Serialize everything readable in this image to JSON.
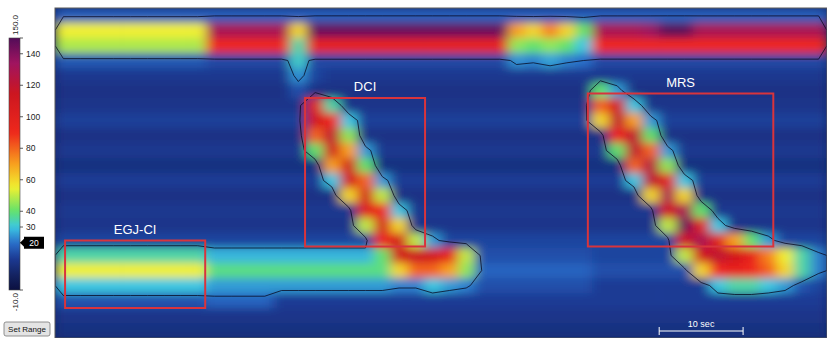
{
  "chart_data": {
    "type": "heatmap",
    "x": [
      0,
      2,
      4,
      6,
      8,
      10,
      12,
      14,
      16,
      18,
      20,
      22,
      24,
      26,
      28,
      30,
      32,
      34,
      36,
      38,
      40,
      42,
      44,
      46,
      48,
      50,
      52,
      54,
      56,
      58,
      60,
      62,
      64,
      66,
      68,
      70,
      72,
      74,
      76,
      78,
      80,
      82,
      84,
      86,
      88,
      90,
      92
    ],
    "y": [
      0,
      1,
      2,
      3,
      4,
      5,
      6,
      7,
      8,
      9,
      10,
      11,
      12,
      13,
      14,
      15,
      16,
      17,
      18,
      19,
      20,
      21,
      22
    ],
    "xlim": [
      0,
      92
    ],
    "ylim": [
      22,
      0
    ],
    "tick_labels": false,
    "cells": [
      [
        17,
        17,
        17,
        17,
        17,
        17,
        17,
        17,
        17,
        17,
        17,
        17,
        17,
        17,
        17,
        17,
        17,
        17,
        17,
        17,
        17,
        17,
        17,
        17,
        17,
        17,
        17,
        17,
        17,
        17,
        17,
        17,
        17,
        17,
        17,
        17,
        17,
        17,
        17,
        17,
        17,
        17,
        17,
        17,
        17,
        17
      ],
      [
        55,
        55,
        55,
        55,
        55,
        55,
        55,
        55,
        55,
        130,
        130,
        130,
        130,
        130,
        60,
        145,
        145,
        145,
        145,
        145,
        145,
        145,
        145,
        145,
        145,
        145,
        145,
        70,
        60,
        75,
        60,
        40,
        130,
        130,
        130,
        135,
        148,
        148,
        130,
        130,
        130,
        130,
        130,
        130,
        130,
        130
      ],
      [
        48,
        48,
        48,
        48,
        48,
        48,
        48,
        48,
        48,
        90,
        90,
        90,
        90,
        90,
        35,
        95,
        95,
        95,
        95,
        95,
        95,
        95,
        95,
        95,
        95,
        95,
        95,
        45,
        40,
        45,
        40,
        30,
        90,
        90,
        90,
        90,
        90,
        90,
        90,
        90,
        90,
        90,
        90,
        90,
        90,
        90
      ],
      [
        16,
        16,
        16,
        16,
        16,
        16,
        16,
        16,
        16,
        13,
        13,
        13,
        13,
        13,
        32,
        13,
        13,
        13,
        13,
        13,
        13,
        13,
        13,
        13,
        13,
        13,
        13,
        24,
        22,
        26,
        22,
        20,
        13,
        13,
        13,
        13,
        13,
        13,
        13,
        13,
        13,
        13,
        13,
        13,
        13,
        13
      ],
      [
        9,
        9,
        9,
        9,
        9,
        9,
        9,
        9,
        9,
        9,
        9,
        9,
        9,
        9,
        24,
        12,
        9,
        9,
        9,
        9,
        9,
        9,
        9,
        9,
        9,
        9,
        9,
        9,
        9,
        9,
        9,
        9,
        9,
        9,
        9,
        9,
        9,
        9,
        9,
        9,
        9,
        9,
        9,
        9,
        9,
        9
      ],
      [
        7,
        7,
        7,
        7,
        7,
        7,
        7,
        7,
        7,
        7,
        7,
        7,
        7,
        7,
        14,
        7,
        7,
        7,
        7,
        7,
        7,
        7,
        7,
        7,
        7,
        7,
        7,
        7,
        7,
        7,
        7,
        7,
        40,
        25,
        7,
        7,
        7,
        7,
        7,
        7,
        7,
        7,
        7,
        7,
        7,
        7
      ],
      [
        8,
        8,
        8,
        8,
        8,
        8,
        8,
        8,
        8,
        8,
        8,
        8,
        8,
        8,
        8,
        100,
        35,
        8,
        8,
        8,
        8,
        8,
        8,
        8,
        8,
        8,
        8,
        8,
        8,
        8,
        8,
        8,
        80,
        110,
        30,
        8,
        8,
        8,
        8,
        8,
        8,
        8,
        8,
        8,
        8,
        8
      ],
      [
        11,
        11,
        11,
        11,
        11,
        11,
        11,
        11,
        11,
        11,
        11,
        11,
        11,
        11,
        11,
        110,
        90,
        30,
        11,
        11,
        11,
        11,
        11,
        11,
        11,
        11,
        11,
        11,
        11,
        11,
        11,
        11,
        60,
        120,
        70,
        25,
        11,
        11,
        11,
        11,
        11,
        11,
        11,
        11,
        11,
        11
      ],
      [
        7,
        7,
        7,
        7,
        7,
        7,
        7,
        7,
        7,
        7,
        7,
        7,
        7,
        7,
        7,
        80,
        120,
        45,
        7,
        7,
        7,
        7,
        7,
        7,
        7,
        7,
        7,
        7,
        7,
        7,
        7,
        7,
        7,
        90,
        120,
        40,
        7,
        7,
        7,
        7,
        7,
        7,
        7,
        7,
        7,
        7
      ],
      [
        9,
        9,
        9,
        9,
        9,
        9,
        9,
        9,
        9,
        9,
        9,
        9,
        9,
        9,
        9,
        40,
        110,
        70,
        25,
        9,
        9,
        9,
        9,
        9,
        9,
        9,
        9,
        9,
        9,
        9,
        9,
        9,
        9,
        40,
        120,
        80,
        25,
        9,
        9,
        9,
        9,
        9,
        9,
        9,
        9,
        9
      ],
      [
        6,
        6,
        6,
        6,
        6,
        6,
        6,
        6,
        6,
        6,
        6,
        6,
        6,
        6,
        6,
        6,
        70,
        110,
        40,
        6,
        6,
        6,
        6,
        6,
        6,
        6,
        6,
        6,
        6,
        6,
        6,
        6,
        6,
        6,
        80,
        125,
        45,
        6,
        6,
        6,
        6,
        6,
        6,
        6,
        6,
        6
      ],
      [
        10,
        10,
        10,
        10,
        10,
        10,
        10,
        10,
        10,
        10,
        10,
        10,
        10,
        10,
        10,
        10,
        30,
        110,
        80,
        25,
        10,
        10,
        10,
        10,
        10,
        10,
        10,
        10,
        10,
        10,
        10,
        10,
        10,
        10,
        30,
        120,
        100,
        30,
        10,
        10,
        10,
        10,
        10,
        10,
        10,
        10
      ],
      [
        7,
        7,
        7,
        7,
        7,
        7,
        7,
        7,
        7,
        7,
        7,
        7,
        7,
        7,
        7,
        7,
        7,
        60,
        110,
        50,
        7,
        7,
        7,
        7,
        7,
        7,
        7,
        7,
        7,
        7,
        7,
        7,
        7,
        7,
        7,
        60,
        130,
        60,
        7,
        7,
        7,
        7,
        7,
        7,
        7,
        7
      ],
      [
        9,
        9,
        9,
        9,
        9,
        9,
        9,
        9,
        9,
        9,
        9,
        9,
        9,
        9,
        9,
        9,
        9,
        9,
        100,
        90,
        30,
        9,
        9,
        9,
        9,
        9,
        9,
        9,
        9,
        9,
        9,
        9,
        9,
        9,
        9,
        9,
        110,
        130,
        40,
        9,
        9,
        9,
        9,
        9,
        9,
        9
      ],
      [
        8,
        8,
        8,
        8,
        8,
        8,
        8,
        8,
        8,
        8,
        8,
        8,
        8,
        8,
        8,
        8,
        8,
        8,
        50,
        110,
        60,
        8,
        8,
        8,
        8,
        8,
        8,
        8,
        8,
        8,
        8,
        8,
        8,
        8,
        8,
        8,
        50,
        145,
        100,
        30,
        8,
        8,
        8,
        8,
        8,
        8
      ],
      [
        12,
        12,
        12,
        12,
        12,
        12,
        12,
        12,
        12,
        12,
        12,
        12,
        12,
        12,
        12,
        12,
        12,
        12,
        12,
        90,
        110,
        50,
        25,
        12,
        12,
        12,
        12,
        12,
        12,
        12,
        12,
        12,
        12,
        12,
        12,
        12,
        12,
        110,
        130,
        100,
        70,
        40,
        25,
        12,
        12,
        12
      ],
      [
        35,
        35,
        35,
        35,
        35,
        35,
        35,
        35,
        35,
        28,
        28,
        28,
        28,
        28,
        28,
        28,
        28,
        28,
        28,
        40,
        110,
        115,
        110,
        95,
        50,
        14,
        14,
        14,
        14,
        14,
        14,
        14,
        12,
        12,
        12,
        12,
        12,
        50,
        110,
        120,
        110,
        95,
        75,
        55,
        35,
        22
      ],
      [
        55,
        55,
        55,
        55,
        55,
        55,
        55,
        55,
        55,
        38,
        38,
        38,
        38,
        38,
        38,
        38,
        38,
        38,
        38,
        38,
        60,
        80,
        80,
        70,
        45,
        18,
        18,
        18,
        18,
        18,
        18,
        18,
        14,
        14,
        14,
        14,
        14,
        14,
        60,
        90,
        95,
        90,
        80,
        60,
        35,
        22
      ],
      [
        30,
        30,
        30,
        30,
        30,
        30,
        30,
        30,
        30,
        25,
        25,
        25,
        25,
        25,
        25,
        25,
        25,
        25,
        25,
        25,
        22,
        22,
        30,
        25,
        22,
        14,
        14,
        14,
        14,
        14,
        14,
        14,
        10,
        10,
        10,
        10,
        10,
        10,
        10,
        30,
        35,
        35,
        30,
        25,
        15,
        12
      ],
      [
        15,
        15,
        15,
        15,
        15,
        15,
        15,
        15,
        15,
        18,
        18,
        18,
        18,
        10,
        10,
        10,
        10,
        10,
        10,
        10,
        10,
        10,
        10,
        10,
        10,
        10,
        10,
        10,
        10,
        10,
        10,
        10,
        10,
        10,
        10,
        10,
        10,
        10,
        10,
        10,
        10,
        10,
        10,
        10,
        10,
        10
      ],
      [
        8,
        8,
        8,
        8,
        8,
        8,
        8,
        8,
        8,
        8,
        8,
        8,
        8,
        8,
        8,
        8,
        8,
        8,
        8,
        8,
        8,
        8,
        8,
        8,
        8,
        8,
        8,
        8,
        8,
        8,
        8,
        8,
        8,
        8,
        8,
        8,
        8,
        8,
        8,
        8,
        8,
        8,
        8,
        8,
        8,
        8
      ],
      [
        6,
        6,
        6,
        6,
        6,
        6,
        6,
        6,
        6,
        6,
        6,
        6,
        6,
        6,
        6,
        6,
        6,
        6,
        6,
        6,
        6,
        6,
        6,
        6,
        6,
        6,
        6,
        6,
        6,
        6,
        6,
        6,
        6,
        6,
        6,
        6,
        6,
        6,
        6,
        6,
        6,
        6,
        6,
        6,
        6,
        6
      ]
    ],
    "colorbar": {
      "range": [
        -10,
        150
      ],
      "ticks": [
        {
          "value": 150,
          "label": "150.0"
        },
        140,
        120,
        100,
        80,
        60,
        40,
        30,
        20,
        {
          "value": -10,
          "label": "-10.0"
        }
      ]
    },
    "isobar": 20,
    "button": "Set Range",
    "annotations": [
      {
        "label": "EGJ-CI",
        "x": [
          1.2,
          17.9
        ],
        "y": [
          15.5,
          20
        ]
      },
      {
        "label": "DCI",
        "x": [
          29.8,
          44.1
        ],
        "y": [
          6,
          15.9
        ]
      },
      {
        "label": "MRS",
        "x": [
          63.5,
          85.6
        ],
        "y": [
          5.7,
          15.9
        ]
      }
    ],
    "scale_bar": {
      "x": [
        72,
        82
      ],
      "label": "10 sec"
    }
  }
}
